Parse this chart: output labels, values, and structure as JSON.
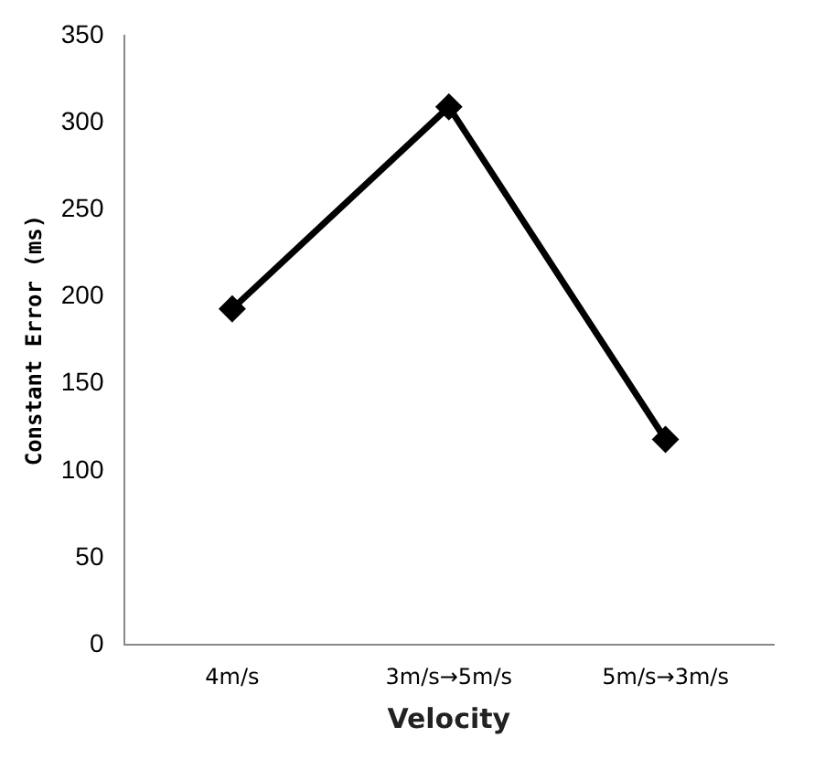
{
  "chart_data": {
    "type": "line",
    "xlabel": "Velocity",
    "ylabel": "Constant Error (ms)",
    "categories": [
      "4m/s",
      "3m/s→5m/s",
      "5m/s→3m/s"
    ],
    "series": [
      {
        "color": "#000000",
        "values": [
          193,
          309,
          118
        ]
      }
    ],
    "ylim": [
      0,
      350
    ],
    "yticks": [
      0,
      50,
      100,
      150,
      200,
      250,
      300,
      350
    ],
    "grid": false,
    "legend": false,
    "marker": "diamond",
    "line_style": "solid"
  }
}
